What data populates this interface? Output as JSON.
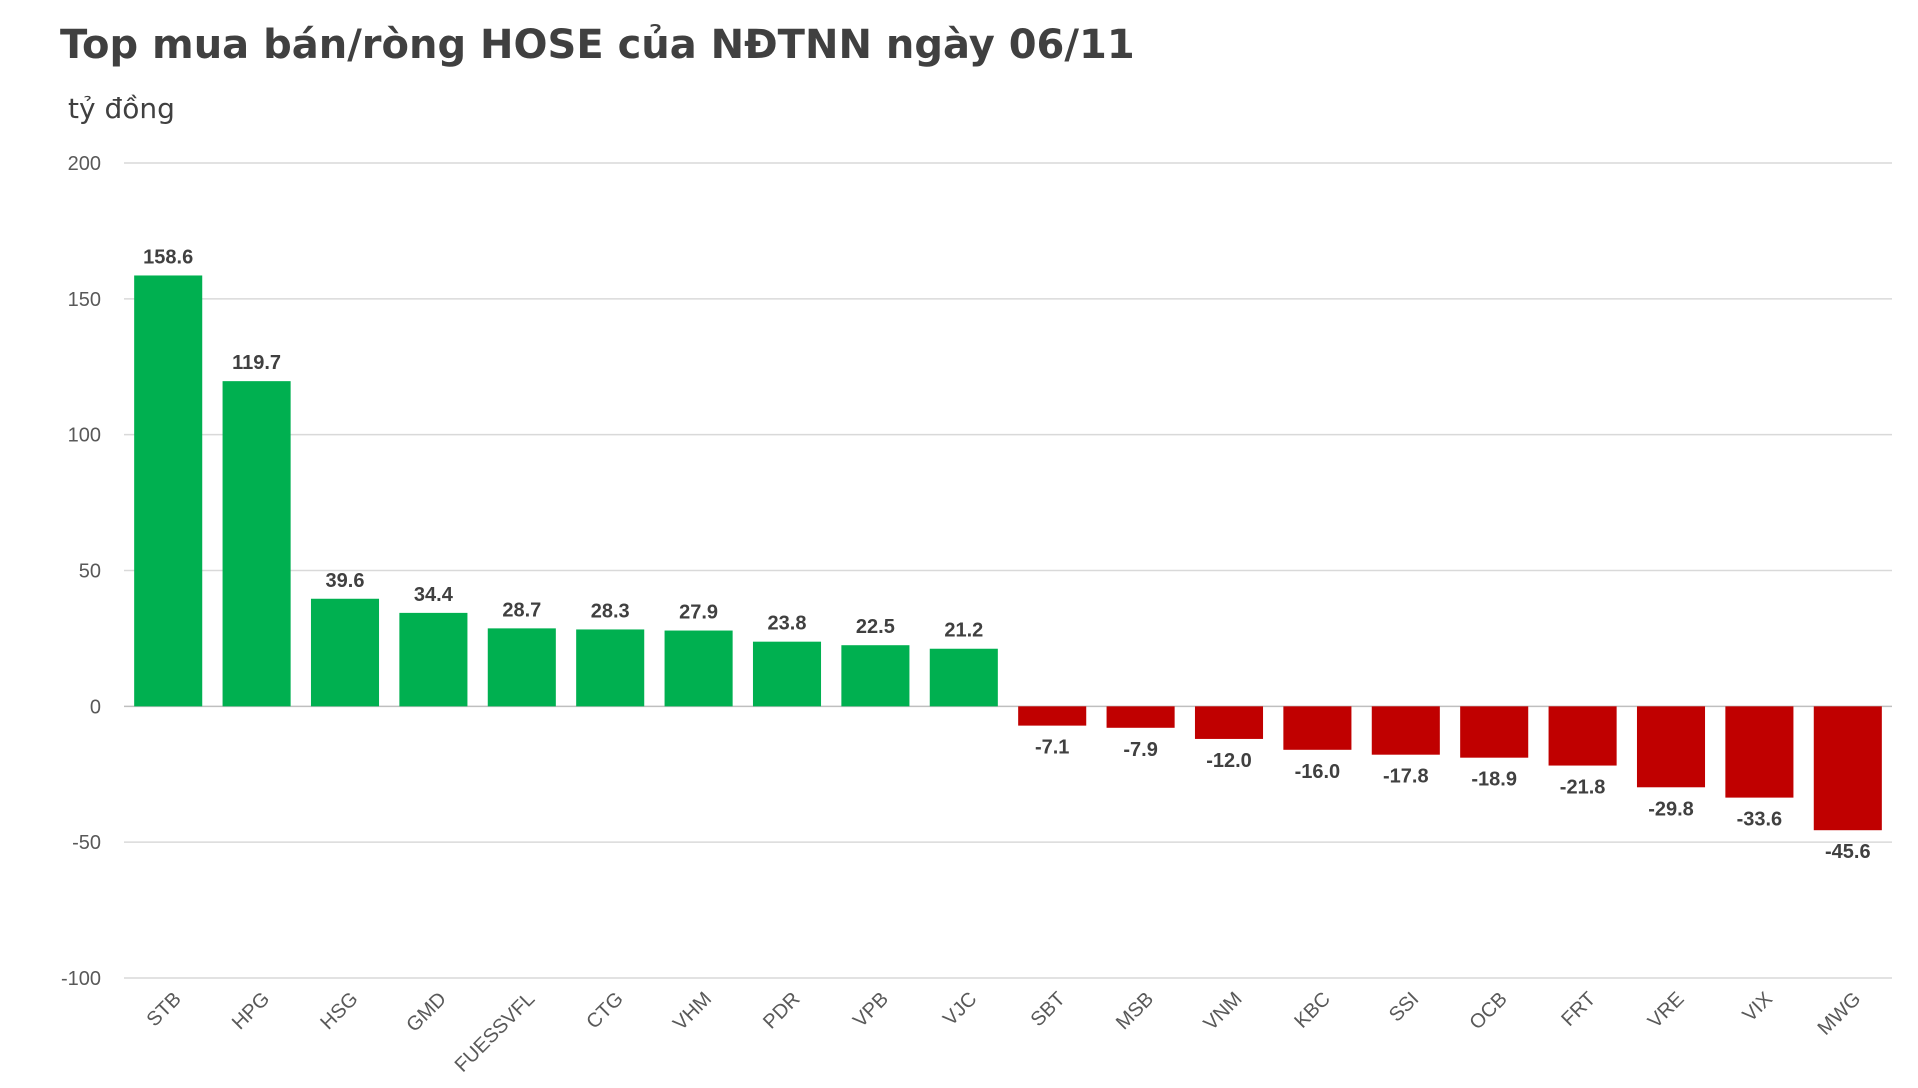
{
  "chart_data": {
    "type": "bar",
    "title": "Top mua bán/ròng HOSE của NĐTNN ngày 06/11",
    "unit": "tỷ đồng",
    "xlabel": "",
    "ylabel": "",
    "ylim": [
      -100,
      200
    ],
    "yticks": [
      200,
      150,
      100,
      50,
      0,
      -50,
      -100
    ],
    "grid": true,
    "legend": "none",
    "categories": [
      "STB",
      "HPG",
      "HSG",
      "GMD",
      "FUESSVFL",
      "CTG",
      "VHM",
      "PDR",
      "VPB",
      "VJC",
      "SBT",
      "MSB",
      "VNM",
      "KBC",
      "SSI",
      "OCB",
      "FRT",
      "VRE",
      "VIX",
      "MWG"
    ],
    "values": [
      158.6,
      119.7,
      39.6,
      34.4,
      28.7,
      28.3,
      27.9,
      23.8,
      22.5,
      21.2,
      -7.1,
      -7.9,
      -12.0,
      -16.0,
      -17.8,
      -18.9,
      -21.8,
      -29.8,
      -33.6,
      -45.6
    ],
    "colors": {
      "positive": "#00b050",
      "negative": "#c00000"
    }
  }
}
